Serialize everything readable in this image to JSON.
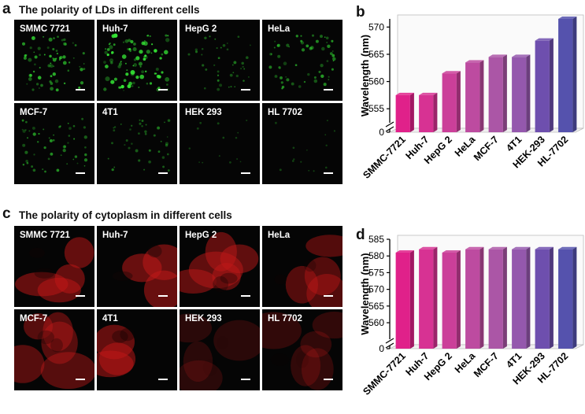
{
  "panel_a": {
    "letter": "a",
    "title": "The polarity of LDs in different cells",
    "cells": [
      "SMMC 7721",
      "Huh-7",
      "HepG 2",
      "HeLa",
      "MCF-7",
      "4T1",
      "HEK 293",
      "HL 7702"
    ],
    "stain_color": "#35e635",
    "brightness": [
      0.7,
      1.0,
      0.35,
      0.55,
      0.5,
      0.35,
      0.05,
      0.05
    ]
  },
  "panel_c": {
    "letter": "c",
    "title": "The polarity of cytoplasm in different cells",
    "cells": [
      "SMMC 7721",
      "Huh-7",
      "HepG 2",
      "HeLa",
      "MCF-7",
      "4T1",
      "HEK 293",
      "HL 7702"
    ],
    "stain_color": "#c01818",
    "brightness": [
      0.8,
      0.85,
      0.75,
      0.6,
      0.65,
      0.8,
      0.12,
      0.2
    ]
  },
  "chart_data": [
    {
      "panel": "b",
      "type": "bar",
      "ylabel": "Wavelength (nm)",
      "categories": [
        "SMMC-7721",
        "Huh-7",
        "HepG 2",
        "HeLa",
        "MCF-7",
        "4T1",
        "HEK-293",
        "HL-7702"
      ],
      "values": [
        557.5,
        557.5,
        561.5,
        563.5,
        564.5,
        564.5,
        567.5,
        571.5
      ],
      "ylim": [
        553,
        571.5
      ],
      "yticks": [
        555,
        560,
        565,
        570
      ],
      "axis_break": true,
      "zero_tick": "0",
      "bar_colors": [
        "#e0218a",
        "#d73293",
        "#cb3f99",
        "#bd4ba0",
        "#ab56a6",
        "#9458ad",
        "#6e4fae",
        "#5552ad"
      ],
      "bar_style": "3d"
    },
    {
      "panel": "d",
      "type": "bar",
      "ylabel": "Wavelength (nm)",
      "categories": [
        "SMMC-7721",
        "Huh-7",
        "HepG 2",
        "HeLa",
        "MCF-7",
        "4T1",
        "HEK-293",
        "HL-7702"
      ],
      "values": [
        581,
        582,
        581,
        582,
        582,
        582,
        582,
        582
      ],
      "ylim": [
        556,
        585
      ],
      "yticks": [
        560,
        565,
        570,
        575,
        580,
        585
      ],
      "axis_break": true,
      "zero_tick": "0",
      "bar_colors": [
        "#e0218a",
        "#d73293",
        "#cb3f99",
        "#bd4ba0",
        "#ab56a6",
        "#9458ad",
        "#6e4fae",
        "#5552ad"
      ],
      "bar_style": "3d"
    }
  ]
}
